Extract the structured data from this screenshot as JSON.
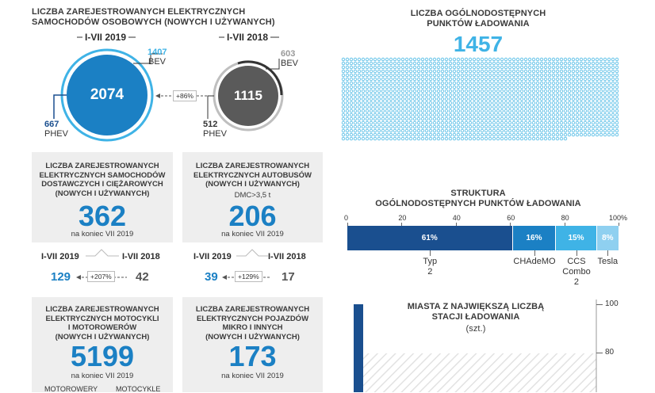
{
  "left": {
    "title_line1": "LICZBA ZAREJESTROWANYCH ELEKTRYCZNYCH",
    "title_line2": "SAMOCHODÓW OSOBOWYCH (NOWYCH I UŻYWANYCH)",
    "period_2019": "I-VII 2019",
    "period_2018": "I-VII 2018",
    "total_2019": "2074",
    "total_2018": "1115",
    "bev_2019": "1407",
    "bev_2018": "603",
    "phev_2019": "667",
    "phev_2018": "512",
    "bev_label": "BEV",
    "phev_label": "PHEV",
    "growth": "+86%"
  },
  "panels": {
    "vans": {
      "title_lines": [
        "LICZBA ZAREJESTROWANYCH",
        "ELEKTRYCZNYCH SAMOCHODÓW",
        "DOSTAWCZYCH I CIĘŻAROWYCH",
        "(NOWYCH I UŻYWANYCH)"
      ],
      "value": "362",
      "sub": "na koniec VII 2019",
      "year_a": "I-VII 2019",
      "year_b": "I-VII 2018",
      "val_a": "129",
      "val_b": "42",
      "growth": "+207%"
    },
    "buses": {
      "title_lines": [
        "LICZBA ZAREJESTROWANYCH",
        "ELEKTRYCZNYCH AUTOBUSÓW",
        "(NOWYCH I UŻYWANYCH)"
      ],
      "note": "DMC>3,5 t",
      "value": "206",
      "sub": "na koniec VII 2019",
      "year_a": "I-VII 2019",
      "year_b": "I-VII 2018",
      "val_a": "39",
      "val_b": "17",
      "growth": "+129%"
    },
    "moto": {
      "title_lines": [
        "LICZBA ZAREJESTROWANYCH",
        "ELEKTRYCZNYCH MOTOCYKLI",
        "I MOTOROWERÓW",
        "(NOWYCH I UŻYWANYCH)"
      ],
      "value": "5199",
      "sub": "na koniec VII 2019",
      "bottom_a": "MOTOROWERY",
      "bottom_b": "MOTOCYKLE"
    },
    "micro": {
      "title_lines": [
        "LICZBA ZAREJESTROWANYCH",
        "ELEKTRYCZNYCH POJAZDÓW",
        "MIKRO I INNYCH",
        "(NOWYCH I UŻYWANYCH)"
      ],
      "value": "173",
      "sub": "na koniec VII 2019"
    }
  },
  "charging": {
    "title_line1": "LICZBA OGÓLNODOSTĘPNYCH",
    "title_line2": "PUNKTÓW ŁADOWANIA",
    "value": "1457",
    "dot_color": "#49b8e4"
  },
  "colors": {
    "blue": "#1b80c4",
    "dark_blue": "#1a4f8f",
    "light_blue": "#3fb3e6",
    "grey": "#5a5a5a",
    "panel_grey": "#eeeeee"
  },
  "chart_data": [
    {
      "type": "bar",
      "title": "STRUKTURA OGÓLNODOSTĘPNYCH PUNKTÓW ŁADOWANIA",
      "orientation": "horizontal-stacked",
      "xlim": [
        0,
        100
      ],
      "ticks": [
        "0",
        "20",
        "40",
        "60",
        "80",
        "100%"
      ],
      "tick_values": [
        0,
        20,
        40,
        60,
        80,
        100
      ],
      "series": [
        {
          "name": "Typ 2",
          "value": 61,
          "label": "61%",
          "color": "#1a4f8f"
        },
        {
          "name": "CHAdeMO",
          "value": 16,
          "label": "16%",
          "color": "#1b80c4"
        },
        {
          "name": "CCS Combo 2",
          "value": 15,
          "label": "15%",
          "color": "#3fb3e6"
        },
        {
          "name": "Tesla",
          "value": 8,
          "label": "8%",
          "color": "#8fd0f0"
        }
      ]
    },
    {
      "type": "bar",
      "title_line1": "MIASTA Z NAJWIĘKSZĄ LICZBĄ",
      "title_line2": "STACJI ŁADOWANIA",
      "unit": "(szt.)",
      "ylim": [
        75,
        100
      ],
      "ticks": [
        "100",
        "80"
      ],
      "tick_values": [
        100,
        80
      ]
    }
  ]
}
